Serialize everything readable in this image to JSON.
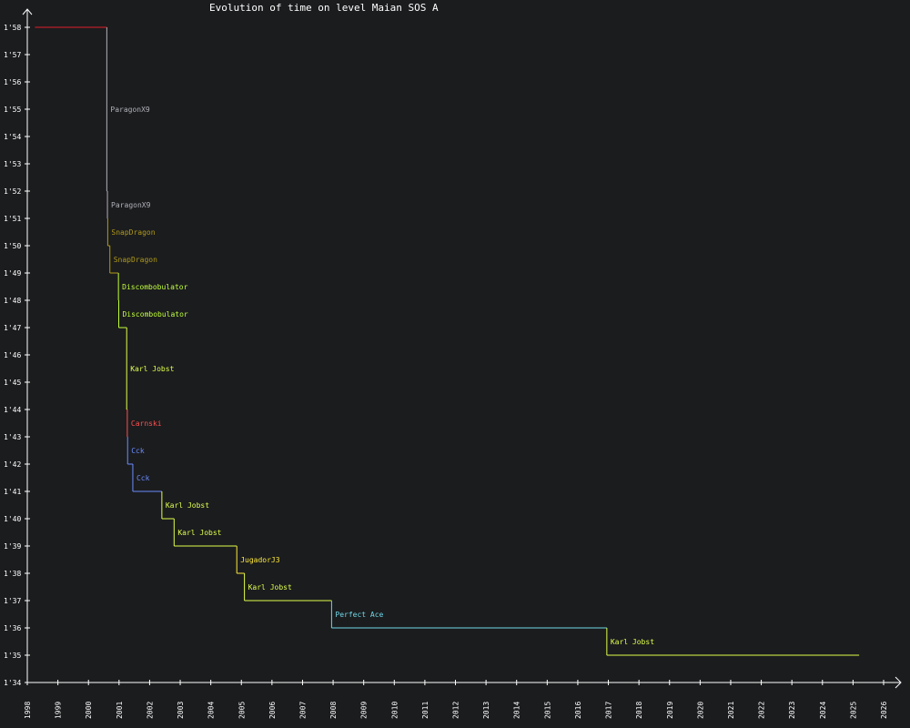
{
  "chart_data": {
    "type": "line",
    "title": "Evolution of time on level Maian SOS A",
    "xlabel": "",
    "ylabel": "",
    "x_ticks": [
      "1998",
      "1999",
      "2000",
      "2001",
      "2002",
      "2003",
      "2004",
      "2005",
      "2006",
      "2007",
      "2008",
      "2009",
      "2010",
      "2011",
      "2012",
      "2013",
      "2014",
      "2015",
      "2016",
      "2017",
      "2018",
      "2019",
      "2020",
      "2021",
      "2022",
      "2023",
      "2024",
      "2025",
      "2026"
    ],
    "y_ticks": [
      "1'34",
      "1'35",
      "1'36",
      "1'37",
      "1'38",
      "1'39",
      "1'40",
      "1'41",
      "1'42",
      "1'43",
      "1'44",
      "1'45",
      "1'46",
      "1'47",
      "1'48",
      "1'49",
      "1'50",
      "1'51",
      "1'52",
      "1'53",
      "1'54",
      "1'55",
      "1'56",
      "1'57",
      "1'58"
    ],
    "xlim": [
      1998,
      2026
    ],
    "ylim": [
      94,
      118
    ],
    "grid": false,
    "legend": "none",
    "start": {
      "x": 1998.25,
      "y": 118,
      "color": "#e0202a"
    },
    "end_x": 2025.2,
    "records": [
      {
        "player": "ParagonX9",
        "x": 2000.6,
        "y": 112,
        "color": "#b0b0b8"
      },
      {
        "player": "ParagonX9",
        "x": 2000.62,
        "y": 111,
        "color": "#b0b0b8"
      },
      {
        "player": "SnapDragon",
        "x": 2000.63,
        "y": 110,
        "color": "#b09a1a"
      },
      {
        "player": "SnapDragon",
        "x": 2000.7,
        "y": 109,
        "color": "#b09a1a"
      },
      {
        "player": "Discombobulator",
        "x": 2000.98,
        "y": 108,
        "color": "#c0ff3a"
      },
      {
        "player": "Discombobulator",
        "x": 2000.99,
        "y": 107,
        "color": "#c0ff3a"
      },
      {
        "player": "Karl Jobst",
        "x": 2001.25,
        "y": 104,
        "color": "#e0ff4a"
      },
      {
        "player": "Carnski",
        "x": 2001.27,
        "y": 103,
        "color": "#ff5050"
      },
      {
        "player": "Cck",
        "x": 2001.28,
        "y": 102,
        "color": "#6a8cff"
      },
      {
        "player": "Cck",
        "x": 2001.45,
        "y": 101,
        "color": "#6a8cff"
      },
      {
        "player": "Karl Jobst",
        "x": 2002.4,
        "y": 100,
        "color": "#e0ff4a"
      },
      {
        "player": "Karl Jobst",
        "x": 2002.8,
        "y": 99,
        "color": "#e0ff4a"
      },
      {
        "player": "JugadorJ3",
        "x": 2004.85,
        "y": 98,
        "color": "#ffea3a"
      },
      {
        "player": "Karl Jobst",
        "x": 2005.1,
        "y": 97,
        "color": "#e0ff4a"
      },
      {
        "player": "Perfect Ace",
        "x": 2007.95,
        "y": 96,
        "color": "#70d8e8"
      },
      {
        "player": "Karl Jobst",
        "x": 2016.95,
        "y": 95,
        "color": "#e0ff4a"
      }
    ]
  }
}
